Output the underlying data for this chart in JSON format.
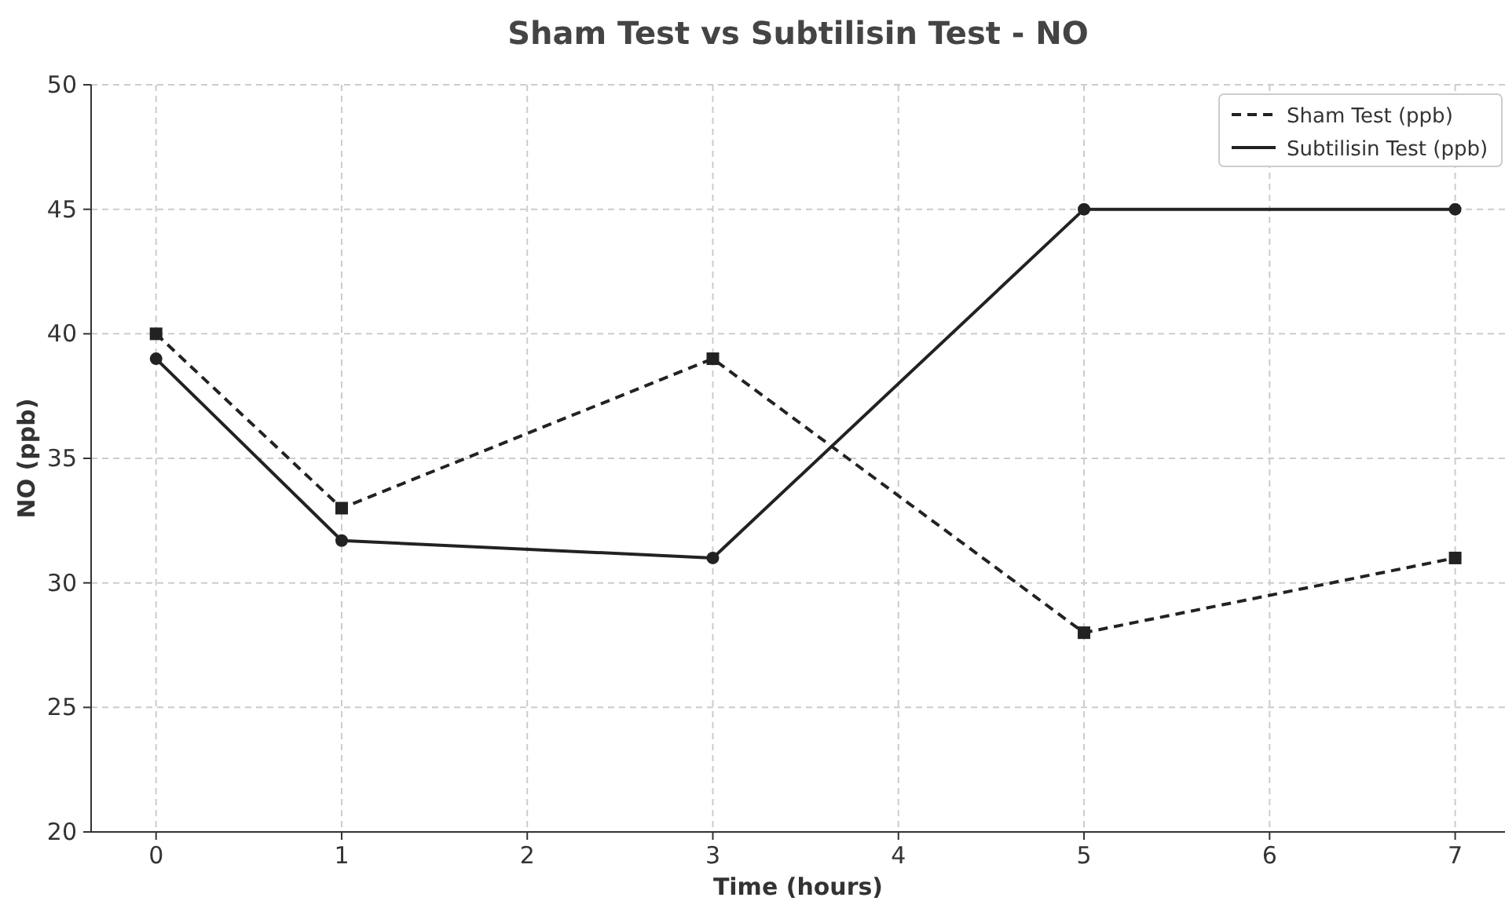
{
  "chart_data": {
    "type": "line",
    "title": "Sham Test vs Subtilisin Test - NO",
    "xlabel": "Time (hours)",
    "ylabel": "NO (ppb)",
    "x": [
      0,
      1,
      3,
      5,
      7
    ],
    "series": [
      {
        "name": "Sham Test (ppb)",
        "color": "#222222",
        "values": [
          40,
          33,
          39,
          28,
          31
        ],
        "line_style": "dashed",
        "marker": "square"
      },
      {
        "name": "Subtilisin Test (ppb)",
        "color": "#222222",
        "values": [
          39,
          31.7,
          31,
          45,
          45
        ],
        "line_style": "solid",
        "marker": "circle"
      }
    ],
    "xlim": [
      -0.35,
      7.26
    ],
    "xticks": [
      0,
      1,
      2,
      3,
      4,
      5,
      6,
      7
    ],
    "ylim": [
      20,
      50
    ],
    "yticks": [
      20,
      25,
      30,
      35,
      40,
      45,
      50
    ],
    "grid": true,
    "legend": "top right"
  }
}
